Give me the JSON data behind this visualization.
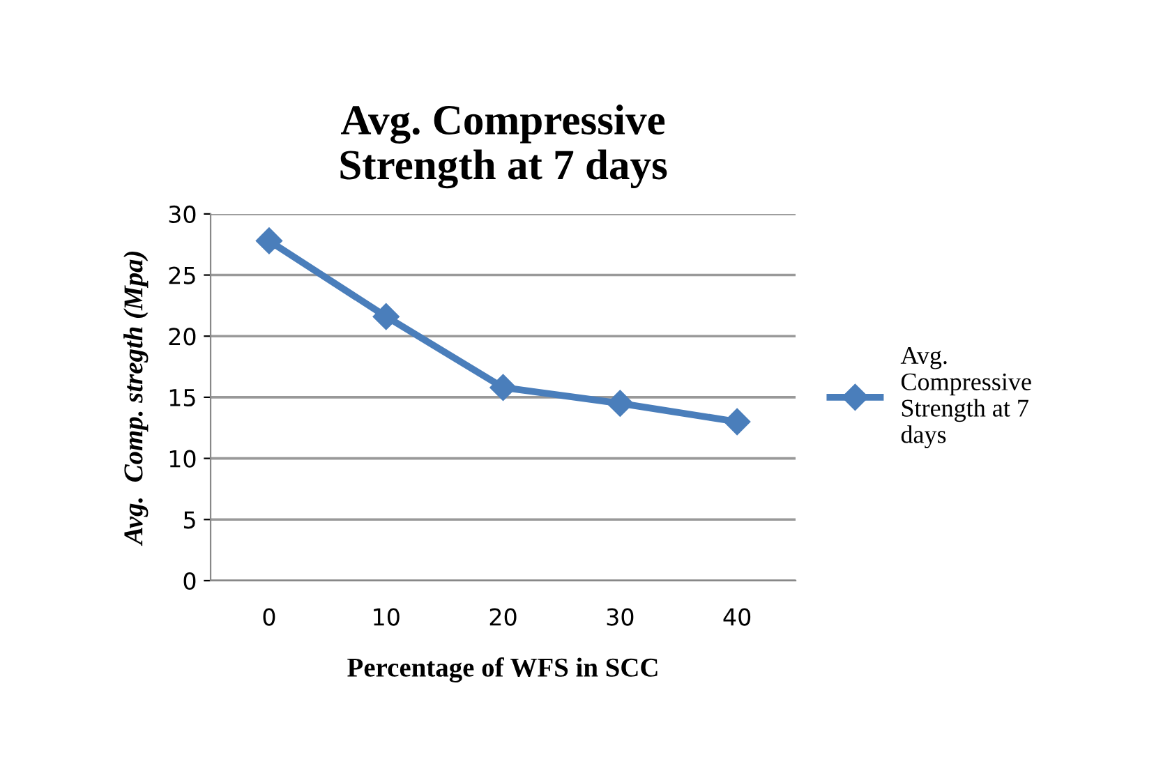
{
  "chart_data": {
    "type": "line",
    "title": "Avg. Compressive\nStrength at 7 days",
    "xlabel": "Percentage of WFS in SCC",
    "ylabel": "Avg.  Comp. stregth (Mpa)",
    "categories": [
      "0",
      "10",
      "20",
      "30",
      "40"
    ],
    "series": [
      {
        "name": "Avg.\nCompressive\nStrength at 7\ndays",
        "color": "#4a7ebb",
        "values": [
          27.8,
          21.6,
          15.8,
          14.5,
          13.0
        ]
      }
    ],
    "ylim": [
      0,
      30
    ],
    "yticks": [
      0,
      5,
      10,
      15,
      20,
      25,
      30
    ],
    "grid": "y",
    "legend": "right",
    "marker": "diamond",
    "line_style": "solid"
  }
}
